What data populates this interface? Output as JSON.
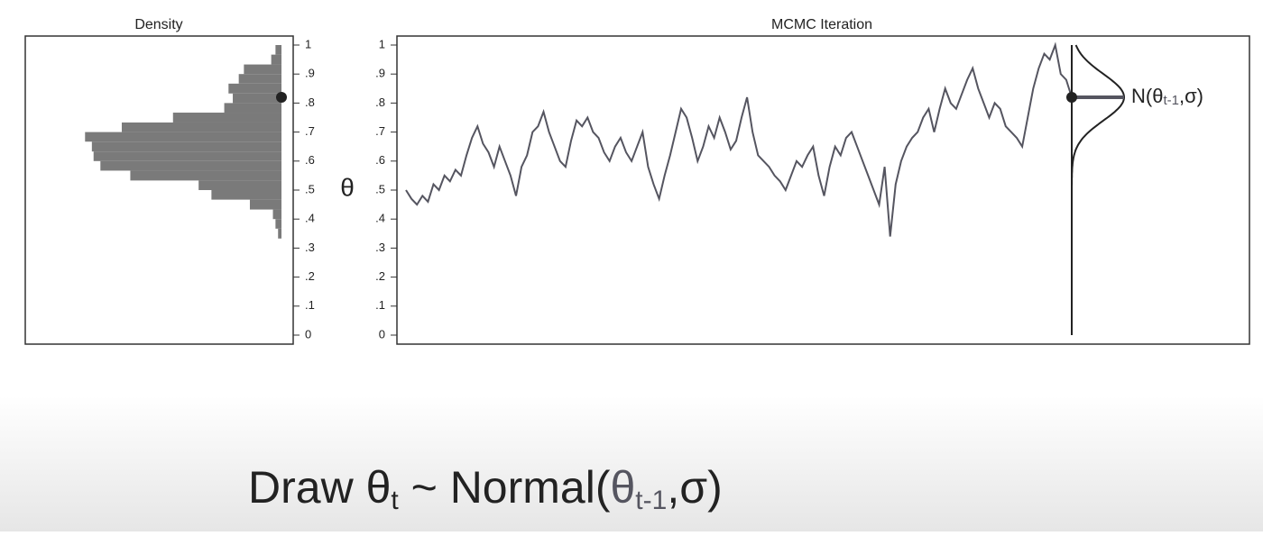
{
  "chart_data": [
    {
      "type": "histogram",
      "title": "Density",
      "orientation": "horizontal",
      "color": "#7a7a7a",
      "bins": [
        0.333,
        0.367,
        0.4,
        0.433,
        0.467,
        0.5,
        0.533,
        0.567,
        0.6,
        0.633,
        0.667,
        0.7,
        0.733,
        0.767,
        0.8,
        0.833,
        0.867,
        0.9,
        0.933,
        0.967,
        1.0
      ],
      "values": [
        4,
        7,
        10,
        37,
        82,
        97,
        177,
        212,
        220,
        222,
        230,
        187,
        127,
        67,
        57,
        62,
        50,
        44,
        12,
        7
      ],
      "xlim": [
        0,
        300
      ],
      "ylim": [
        0,
        1
      ],
      "yticks": [
        0,
        {
          "value": 0.1,
          "label": ".1"
        },
        {
          "value": 0.2,
          "label": ".2"
        },
        {
          "value": 0.3,
          "label": ".3"
        },
        {
          "value": 0.4,
          "label": ".4"
        },
        {
          "value": 0.5,
          "label": ".5"
        },
        {
          "value": 0.6,
          "label": ".6"
        },
        {
          "value": 0.7,
          "label": ".7"
        },
        {
          "value": 0.8,
          "label": ".8"
        },
        {
          "value": 0.9,
          "label": ".9"
        },
        1
      ],
      "current": 0.82
    },
    {
      "type": "line",
      "title": "MCMC Iteration",
      "ylabel": "θ",
      "color": "#555560",
      "values": [
        0.5,
        0.47,
        0.45,
        0.48,
        0.46,
        0.52,
        0.5,
        0.55,
        0.53,
        0.57,
        0.55,
        0.62,
        0.68,
        0.72,
        0.66,
        0.63,
        0.58,
        0.65,
        0.6,
        0.55,
        0.48,
        0.58,
        0.62,
        0.7,
        0.72,
        0.77,
        0.7,
        0.65,
        0.6,
        0.58,
        0.67,
        0.74,
        0.72,
        0.75,
        0.7,
        0.68,
        0.63,
        0.6,
        0.65,
        0.68,
        0.63,
        0.6,
        0.65,
        0.7,
        0.58,
        0.52,
        0.47,
        0.55,
        0.62,
        0.7,
        0.78,
        0.75,
        0.68,
        0.6,
        0.65,
        0.72,
        0.68,
        0.75,
        0.7,
        0.64,
        0.67,
        0.75,
        0.82,
        0.7,
        0.62,
        0.6,
        0.58,
        0.55,
        0.53,
        0.5,
        0.55,
        0.6,
        0.58,
        0.62,
        0.65,
        0.55,
        0.48,
        0.58,
        0.65,
        0.62,
        0.68,
        0.7,
        0.65,
        0.6,
        0.55,
        0.5,
        0.45,
        0.58,
        0.34,
        0.52,
        0.6,
        0.65,
        0.68,
        0.7,
        0.75,
        0.78,
        0.7,
        0.78,
        0.85,
        0.8,
        0.78,
        0.83,
        0.88,
        0.92,
        0.85,
        0.8,
        0.75,
        0.8,
        0.78,
        0.72,
        0.7,
        0.68,
        0.65,
        0.75,
        0.85,
        0.92,
        0.97,
        0.95,
        1.0,
        0.9,
        0.88,
        0.82
      ],
      "ylim": [
        0,
        1
      ],
      "yticks": [
        0,
        {
          "value": 0.1,
          "label": ".1"
        },
        {
          "value": 0.2,
          "label": ".2"
        },
        {
          "value": 0.3,
          "label": ".3"
        },
        {
          "value": 0.4,
          "label": ".4"
        },
        {
          "value": 0.5,
          "label": ".5"
        },
        {
          "value": 0.6,
          "label": ".6"
        },
        {
          "value": 0.7,
          "label": ".7"
        },
        {
          "value": 0.8,
          "label": ".8"
        },
        {
          "value": 0.9,
          "label": ".9"
        },
        1
      ],
      "proposal": {
        "mean": 0.82,
        "sd": 0.08,
        "label_parts": [
          "N(θ",
          "t-1",
          ",σ)"
        ]
      }
    }
  ],
  "caption_parts": [
    "Draw  θ",
    "t",
    " ~ Normal(",
    "θ",
    "t-1",
    ",σ)"
  ]
}
